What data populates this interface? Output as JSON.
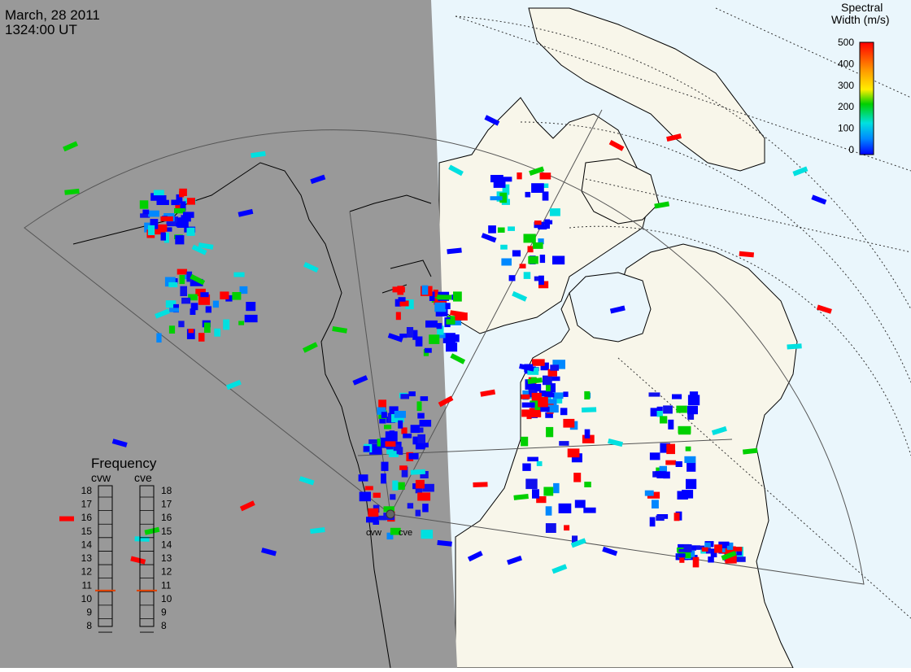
{
  "header": {
    "date": "March, 28 2011",
    "time": "1324:00 UT"
  },
  "colorbar": {
    "title_line1": "Spectral",
    "title_line2": "Width (m/s)",
    "ticks": [
      "500",
      "400",
      "300",
      "200",
      "100",
      "0"
    ],
    "colors": [
      "#ff0000",
      "#ff7f00",
      "#ffd700",
      "#00d000",
      "#00e0e0",
      "#0088ff",
      "#0000ff"
    ]
  },
  "frequency_panel": {
    "title": "Frequency",
    "left_label": "cvw",
    "right_label": "cve",
    "ticks": [
      "18",
      "17",
      "16",
      "15",
      "14",
      "13",
      "12",
      "11",
      "10",
      "9",
      "8"
    ],
    "cvw_value_mhz": 10.6,
    "cve_value_mhz": 10.6,
    "marker_color": "#e04000"
  },
  "radars": {
    "west_label": "cvw",
    "east_label": "cve"
  },
  "map": {
    "night_color": "#999999",
    "land_day_color": "#f8f6ea",
    "ocean_day_color": "#eaf6fc",
    "coastline_color": "#000000"
  }
}
